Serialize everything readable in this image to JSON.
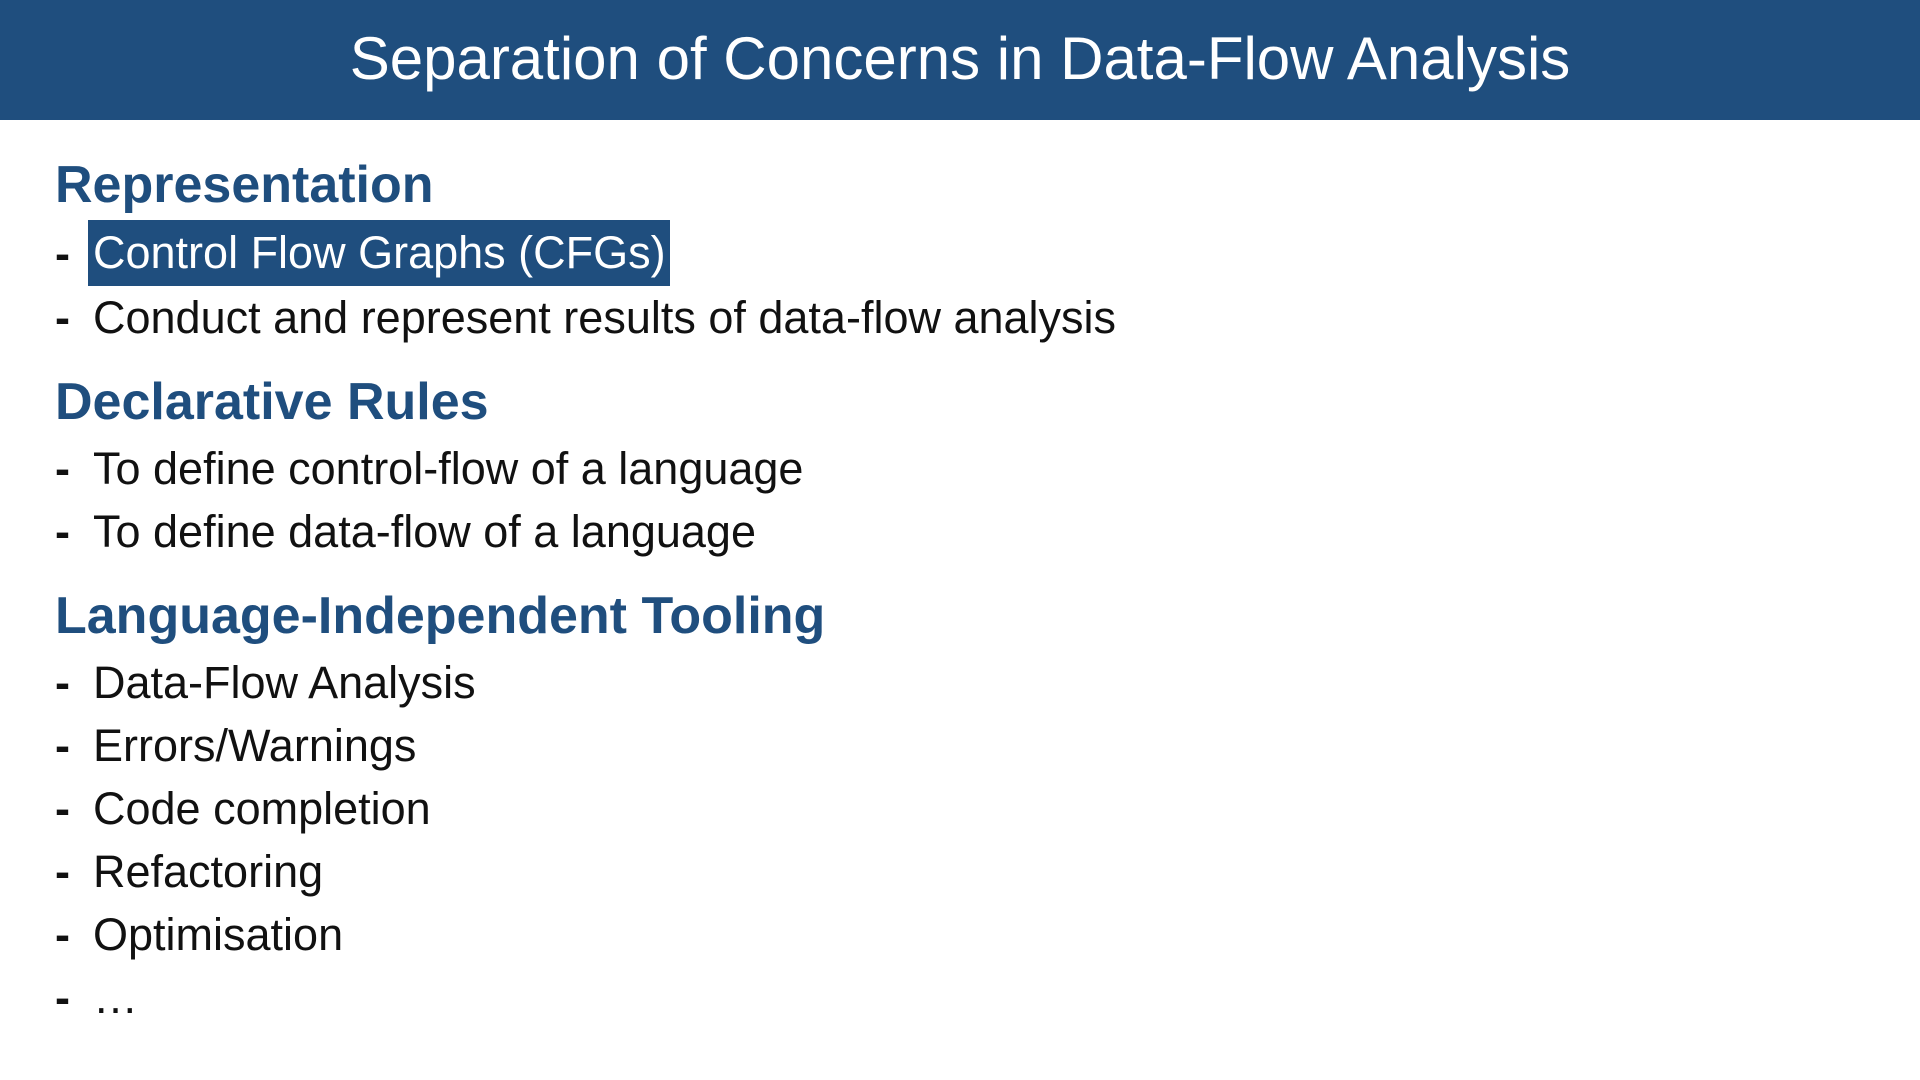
{
  "slide": {
    "title": "Separation of Concerns in Data-Flow Analysis",
    "colors": {
      "title_bar": "#1f4e7e",
      "heading": "#1f4e7e",
      "highlight": "#1f4e7e",
      "body_text": "#111111"
    },
    "sections": [
      {
        "heading": "Representation",
        "items": [
          {
            "text": "Control Flow Graphs (CFGs)",
            "highlighted": true
          },
          {
            "text": "Conduct and represent results of data-flow analysis",
            "highlighted": false
          }
        ]
      },
      {
        "heading": "Declarative Rules",
        "items": [
          {
            "text": "To define control-flow of a language",
            "highlighted": false
          },
          {
            "text": "To define data-flow of a language",
            "highlighted": false
          }
        ]
      },
      {
        "heading": "Language-Independent Tooling",
        "items": [
          {
            "text": "Data-Flow Analysis",
            "highlighted": false
          },
          {
            "text": "Errors/Warnings",
            "highlighted": false
          },
          {
            "text": "Code completion",
            "highlighted": false
          },
          {
            "text": "Refactoring",
            "highlighted": false
          },
          {
            "text": "Optimisation",
            "highlighted": false
          },
          {
            "text": "…",
            "highlighted": false
          }
        ]
      }
    ],
    "bullet_marker": "-"
  }
}
